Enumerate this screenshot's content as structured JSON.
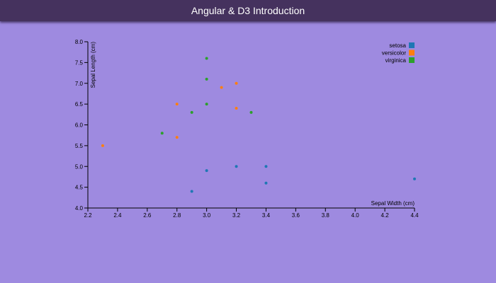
{
  "app": {
    "title": "Angular & D3 Introduction"
  },
  "chart_data": {
    "type": "scatter",
    "title": "",
    "xlabel": "Sepal Width (cm)",
    "ylabel": "Sepal Length (cm)",
    "xlim": [
      2.2,
      4.4
    ],
    "ylim": [
      4.0,
      8.0
    ],
    "xticks": [
      "2.2",
      "2.4",
      "2.6",
      "2.8",
      "3.0",
      "3.2",
      "3.4",
      "3.6",
      "3.8",
      "4.0",
      "4.2",
      "4.4"
    ],
    "yticks": [
      "4.0",
      "4.5",
      "5.0",
      "5.5",
      "6.0",
      "6.5",
      "7.0",
      "7.5",
      "8.0"
    ],
    "grid": false,
    "legend_position": "top-right",
    "series": [
      {
        "name": "setosa",
        "color": "#1f77b4",
        "x": [
          4.4,
          3.4,
          3.4,
          3.2,
          3.0,
          2.9
        ],
        "y": [
          4.7,
          5.0,
          4.6,
          5.0,
          4.9,
          4.4
        ]
      },
      {
        "name": "versicolor",
        "color": "#ff7f0e",
        "x": [
          3.2,
          3.1,
          2.8,
          3.2,
          2.8,
          2.3
        ],
        "y": [
          7.0,
          6.9,
          6.5,
          6.4,
          5.7,
          5.5
        ]
      },
      {
        "name": "virginica",
        "color": "#2ca02c",
        "x": [
          3.0,
          3.0,
          3.0,
          2.9,
          3.3,
          2.7
        ],
        "y": [
          7.6,
          7.1,
          6.5,
          6.3,
          6.3,
          5.8
        ]
      }
    ]
  }
}
